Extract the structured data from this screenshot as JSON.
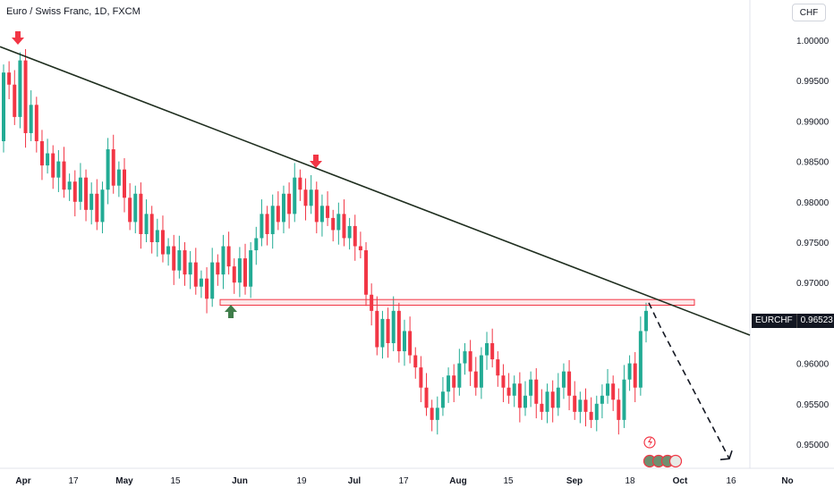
{
  "title": "Euro / Swiss Franc, 1D, FXCM",
  "currency_button": "CHF",
  "symbol_tag": "EURCHF",
  "last_price": "0.96523",
  "colors": {
    "up": "#22ab94",
    "down": "#f23645",
    "trendline": "#1f2e1f",
    "zone": "#f23645",
    "arrow_down": "#f23645",
    "arrow_up": "#3f7d4a"
  },
  "chart_data": {
    "type": "candlestick",
    "x_tick_labels": [
      "Apr",
      "17",
      "May",
      "15",
      "Jun",
      "19",
      "Jul",
      "17",
      "Aug",
      "15",
      "Sep",
      "18",
      "Oct",
      "16",
      "No"
    ],
    "y_tick_labels": [
      "1.00000",
      "0.99500",
      "0.99000",
      "0.98500",
      "0.98000",
      "0.97500",
      "0.97000",
      "0.96500",
      "0.96000",
      "0.95500",
      "0.95000"
    ],
    "ylim": [
      0.9475,
      1.0025
    ],
    "support_zone": [
      0.9672,
      0.9679
    ],
    "trendline": {
      "start": 0.9992,
      "end": 0.9635
    },
    "projection_end": 0.9482,
    "candles": [
      [
        0.9875,
        0.996
      ],
      [
        0.996,
        0.9945
      ],
      [
        0.9945,
        0.9905
      ],
      [
        0.9905,
        0.9975
      ],
      [
        0.9975,
        0.9885
      ],
      [
        0.9885,
        0.992
      ],
      [
        0.992,
        0.9875
      ],
      [
        0.9875,
        0.9845
      ],
      [
        0.9845,
        0.986
      ],
      [
        0.986,
        0.983
      ],
      [
        0.983,
        0.985
      ],
      [
        0.985,
        0.9815
      ],
      [
        0.9815,
        0.9825
      ],
      [
        0.9825,
        0.98
      ],
      [
        0.98,
        0.983
      ],
      [
        0.983,
        0.979
      ],
      [
        0.979,
        0.981
      ],
      [
        0.981,
        0.9775
      ],
      [
        0.9775,
        0.9815
      ],
      [
        0.9815,
        0.9865
      ],
      [
        0.9865,
        0.982
      ],
      [
        0.982,
        0.984
      ],
      [
        0.984,
        0.9805
      ],
      [
        0.9805,
        0.9775
      ],
      [
        0.9775,
        0.981
      ],
      [
        0.981,
        0.976
      ],
      [
        0.976,
        0.9785
      ],
      [
        0.9785,
        0.975
      ],
      [
        0.975,
        0.9765
      ],
      [
        0.9765,
        0.9735
      ],
      [
        0.9735,
        0.9745
      ],
      [
        0.9745,
        0.9715
      ],
      [
        0.9715,
        0.974
      ],
      [
        0.974,
        0.971
      ],
      [
        0.971,
        0.9725
      ],
      [
        0.9725,
        0.9695
      ],
      [
        0.9695,
        0.9705
      ],
      [
        0.9705,
        0.968
      ],
      [
        0.968,
        0.9725
      ],
      [
        0.9725,
        0.971
      ],
      [
        0.971,
        0.9745
      ],
      [
        0.9745,
        0.972
      ],
      [
        0.972,
        0.97
      ],
      [
        0.97,
        0.973
      ],
      [
        0.973,
        0.9695
      ],
      [
        0.9695,
        0.974
      ],
      [
        0.974,
        0.9755
      ],
      [
        0.9755,
        0.9785
      ],
      [
        0.9785,
        0.976
      ],
      [
        0.976,
        0.9795
      ],
      [
        0.9795,
        0.9775
      ],
      [
        0.9775,
        0.981
      ],
      [
        0.981,
        0.9785
      ],
      [
        0.9785,
        0.983
      ],
      [
        0.983,
        0.9815
      ],
      [
        0.9815,
        0.9795
      ],
      [
        0.9795,
        0.9815
      ],
      [
        0.9815,
        0.9775
      ],
      [
        0.9775,
        0.9795
      ],
      [
        0.9795,
        0.978
      ],
      [
        0.978,
        0.9765
      ],
      [
        0.9765,
        0.9785
      ],
      [
        0.9785,
        0.9755
      ],
      [
        0.9755,
        0.977
      ],
      [
        0.977,
        0.9745
      ],
      [
        0.9745,
        0.974
      ],
      [
        0.974,
        0.9685
      ],
      [
        0.9685,
        0.9665
      ],
      [
        0.9665,
        0.962
      ],
      [
        0.962,
        0.9655
      ],
      [
        0.9655,
        0.9625
      ],
      [
        0.9625,
        0.9665
      ],
      [
        0.9665,
        0.9615
      ],
      [
        0.9615,
        0.964
      ],
      [
        0.964,
        0.961
      ],
      [
        0.961,
        0.9595
      ],
      [
        0.9595,
        0.957
      ],
      [
        0.957,
        0.9545
      ],
      [
        0.9545,
        0.953
      ],
      [
        0.953,
        0.9545
      ],
      [
        0.9545,
        0.9565
      ],
      [
        0.9565,
        0.9585
      ],
      [
        0.9585,
        0.957
      ],
      [
        0.957,
        0.96
      ],
      [
        0.96,
        0.9615
      ],
      [
        0.9615,
        0.959
      ],
      [
        0.959,
        0.957
      ],
      [
        0.957,
        0.961
      ],
      [
        0.961,
        0.9625
      ],
      [
        0.9625,
        0.9605
      ],
      [
        0.9605,
        0.9585
      ],
      [
        0.9585,
        0.957
      ],
      [
        0.957,
        0.956
      ],
      [
        0.956,
        0.9575
      ],
      [
        0.9575,
        0.9545
      ],
      [
        0.9545,
        0.956
      ],
      [
        0.956,
        0.958
      ],
      [
        0.958,
        0.955
      ],
      [
        0.955,
        0.954
      ],
      [
        0.954,
        0.9565
      ],
      [
        0.9565,
        0.9545
      ],
      [
        0.9545,
        0.957
      ],
      [
        0.957,
        0.959
      ],
      [
        0.959,
        0.956
      ],
      [
        0.956,
        0.954
      ],
      [
        0.954,
        0.9555
      ],
      [
        0.9555,
        0.954
      ],
      [
        0.954,
        0.953
      ],
      [
        0.953,
        0.955
      ],
      [
        0.955,
        0.956
      ],
      [
        0.956,
        0.9575
      ],
      [
        0.9575,
        0.9555
      ],
      [
        0.9555,
        0.953
      ],
      [
        0.953,
        0.958
      ],
      [
        0.958,
        0.96
      ],
      [
        0.96,
        0.957
      ],
      [
        0.957,
        0.964
      ],
      [
        0.964,
        0.9665
      ]
    ]
  }
}
